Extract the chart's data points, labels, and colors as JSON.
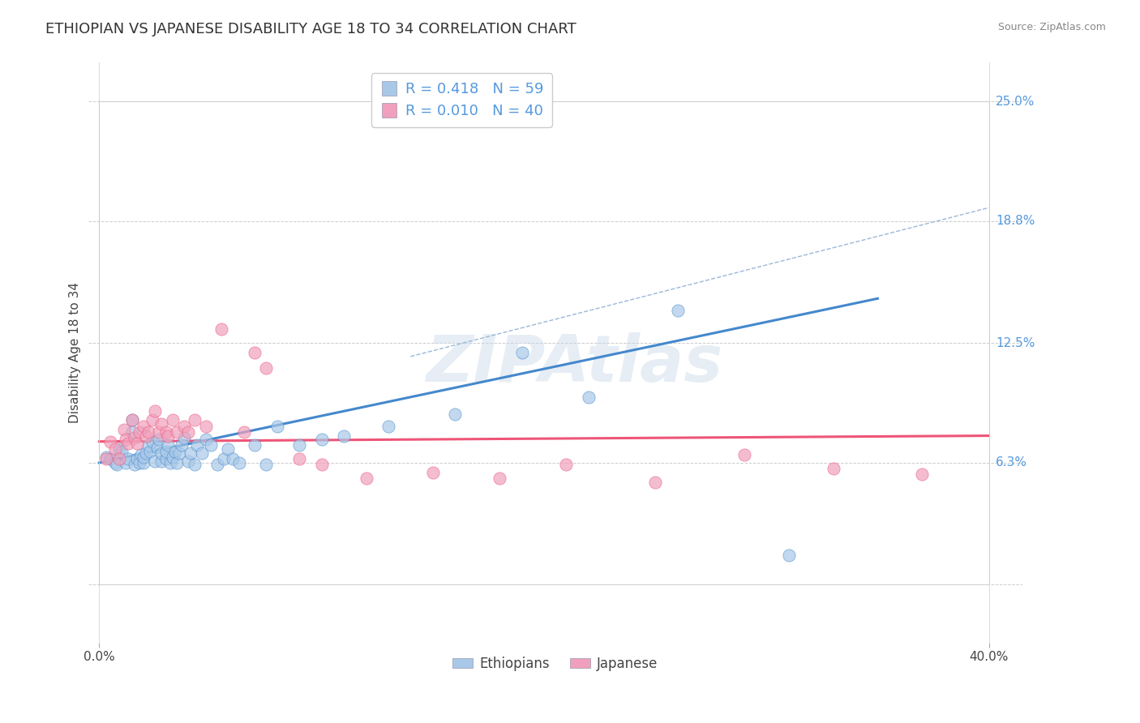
{
  "title": "ETHIOPIAN VS JAPANESE DISABILITY AGE 18 TO 34 CORRELATION CHART",
  "source_text": "Source: ZipAtlas.com",
  "ylabel": "Disability Age 18 to 34",
  "xlim": [
    -0.005,
    0.415
  ],
  "ylim": [
    -0.03,
    0.27
  ],
  "xplot_min": 0.0,
  "xplot_max": 0.4,
  "yplot_min": 0.0,
  "yplot_max": 0.25,
  "xtick_positions": [
    0.0,
    0.4
  ],
  "xtick_labels": [
    "0.0%",
    "40.0%"
  ],
  "ytick_values": [
    0.0,
    0.063,
    0.125,
    0.188,
    0.25
  ],
  "ytick_labels": [
    "",
    "6.3%",
    "12.5%",
    "18.8%",
    "25.0%"
  ],
  "grid_color": "#cccccc",
  "background_color": "#ffffff",
  "watermark_text": "ZIPAtlas",
  "legend_R_ethiopian": "R = 0.418",
  "legend_N_ethiopian": "N = 59",
  "legend_R_japanese": "R = 0.010",
  "legend_N_japanese": "N = 40",
  "ethiopian_color": "#a8c8e8",
  "japanese_color": "#f0a0bc",
  "ethiopian_line_color": "#4488cc",
  "japanese_line_color": "#ee5577",
  "dashed_line_color": "#9ab8d8",
  "title_fontsize": 13,
  "label_fontsize": 11,
  "tick_fontsize": 11,
  "ytick_label_color": "#5599dd",
  "ethiopian_line": {
    "x_start": 0.0,
    "x_end": 0.35,
    "y_start": 0.063,
    "y_end": 0.148
  },
  "japanese_line": {
    "x_start": 0.0,
    "x_end": 0.4,
    "y_start": 0.074,
    "y_end": 0.077
  },
  "dashed_line": {
    "x_start": 0.14,
    "x_end": 0.4,
    "y_start": 0.118,
    "y_end": 0.195
  },
  "ethiopian_scatter": {
    "x": [
      0.003,
      0.005,
      0.007,
      0.008,
      0.009,
      0.01,
      0.012,
      0.013,
      0.015,
      0.015,
      0.016,
      0.017,
      0.018,
      0.019,
      0.02,
      0.02,
      0.021,
      0.022,
      0.023,
      0.024,
      0.025,
      0.026,
      0.027,
      0.028,
      0.028,
      0.03,
      0.03,
      0.031,
      0.032,
      0.033,
      0.034,
      0.035,
      0.036,
      0.037,
      0.038,
      0.04,
      0.041,
      0.043,
      0.044,
      0.046,
      0.048,
      0.05,
      0.053,
      0.056,
      0.058,
      0.06,
      0.063,
      0.07,
      0.075,
      0.08,
      0.09,
      0.1,
      0.11,
      0.13,
      0.16,
      0.19,
      0.22,
      0.26,
      0.31
    ],
    "y": [
      0.066,
      0.065,
      0.063,
      0.062,
      0.07,
      0.069,
      0.063,
      0.065,
      0.079,
      0.085,
      0.062,
      0.065,
      0.063,
      0.067,
      0.063,
      0.066,
      0.068,
      0.072,
      0.069,
      0.074,
      0.064,
      0.071,
      0.075,
      0.064,
      0.068,
      0.065,
      0.069,
      0.072,
      0.063,
      0.066,
      0.069,
      0.063,
      0.068,
      0.072,
      0.076,
      0.064,
      0.068,
      0.062,
      0.072,
      0.068,
      0.075,
      0.072,
      0.062,
      0.065,
      0.07,
      0.065,
      0.063,
      0.072,
      0.062,
      0.082,
      0.072,
      0.075,
      0.077,
      0.082,
      0.088,
      0.12,
      0.097,
      0.142,
      0.015
    ]
  },
  "japanese_scatter": {
    "x": [
      0.003,
      0.005,
      0.007,
      0.009,
      0.011,
      0.012,
      0.013,
      0.015,
      0.016,
      0.017,
      0.018,
      0.02,
      0.021,
      0.022,
      0.024,
      0.025,
      0.027,
      0.028,
      0.03,
      0.031,
      0.033,
      0.035,
      0.038,
      0.04,
      0.043,
      0.048,
      0.055,
      0.065,
      0.07,
      0.075,
      0.09,
      0.1,
      0.12,
      0.15,
      0.18,
      0.21,
      0.25,
      0.29,
      0.33,
      0.37
    ],
    "y": [
      0.065,
      0.074,
      0.07,
      0.065,
      0.08,
      0.075,
      0.073,
      0.085,
      0.076,
      0.073,
      0.079,
      0.082,
      0.077,
      0.079,
      0.085,
      0.09,
      0.079,
      0.083,
      0.079,
      0.077,
      0.085,
      0.079,
      0.082,
      0.079,
      0.085,
      0.082,
      0.132,
      0.079,
      0.12,
      0.112,
      0.065,
      0.062,
      0.055,
      0.058,
      0.055,
      0.062,
      0.053,
      0.067,
      0.06,
      0.057
    ]
  }
}
